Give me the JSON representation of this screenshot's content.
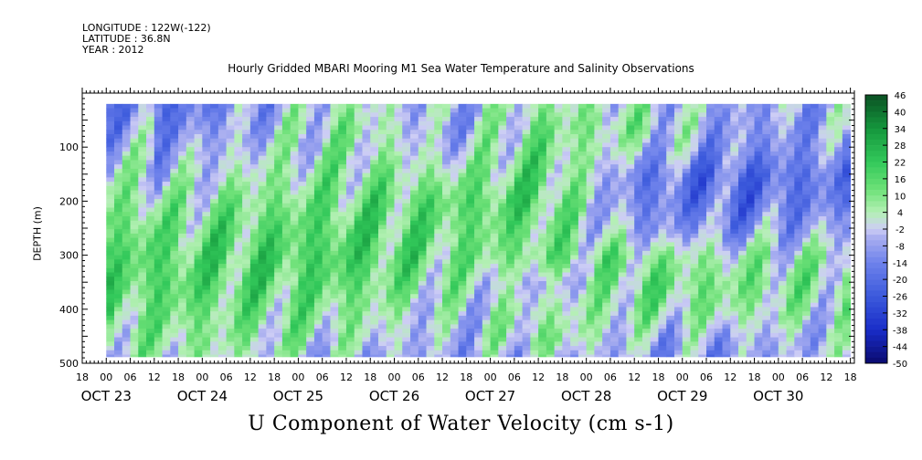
{
  "header": {
    "longitude": "LONGITUDE : 122W(-122)",
    "latitude": "LATITUDE : 36.8N",
    "year": "YEAR : 2012"
  },
  "chart_data": {
    "type": "heatmap",
    "title": "Hourly Gridded MBARI Mooring M1 Sea Water Temperature and Salinity Observations",
    "xlabel": "U Component of Water Velocity (cm s-1)",
    "ylabel": "DEPTH (m)",
    "y_axis": {
      "range": [
        500,
        0
      ],
      "ticks": [
        100,
        200,
        300,
        400,
        500
      ],
      "unit": "m"
    },
    "x_axis": {
      "range": [
        "2012-10-22T18:00",
        "2012-10-30T19:00"
      ],
      "hour_ticks": [
        "18",
        "00",
        "06",
        "12",
        "18",
        "00",
        "06",
        "12",
        "18",
        "00",
        "06",
        "12",
        "18",
        "00",
        "06",
        "12",
        "18",
        "00",
        "06",
        "12",
        "18",
        "00",
        "06",
        "12",
        "18",
        "00",
        "06",
        "12",
        "18",
        "00",
        "06",
        "12",
        "18"
      ],
      "date_labels": [
        "OCT 23",
        "OCT 24",
        "OCT 25",
        "OCT 26",
        "OCT 27",
        "OCT 28",
        "OCT 29",
        "OCT 30"
      ]
    },
    "colorbar": {
      "labels": [
        "46",
        "40",
        "34",
        "28",
        "22",
        "16",
        "10",
        "4",
        "-2",
        "-8",
        "-14",
        "-20",
        "-26",
        "-32",
        "-38",
        "-44",
        "-50"
      ],
      "range": [
        -50,
        46
      ]
    },
    "data_extent": {
      "start": "2012-10-23T00:00",
      "end": "2012-10-30T18:00",
      "depth_range": [
        20,
        488
      ]
    },
    "pattern": {
      "description_rows_depth_m": [
        20,
        60,
        100,
        150,
        200,
        250,
        300,
        350,
        400,
        450,
        488
      ],
      "days": [
        "OCT 23",
        "OCT 24",
        "OCT 25",
        "OCT 26",
        "OCT 27",
        "OCT 28",
        "OCT 29",
        "OCT 30"
      ],
      "mean_u_by_day_and_depth": [
        [
          -20,
          -14,
          -8,
          -4,
          4,
          10,
          14,
          16,
          12,
          8,
          4
        ],
        [
          -8,
          -6,
          -2,
          4,
          10,
          14,
          16,
          14,
          10,
          6,
          2
        ],
        [
          4,
          8,
          6,
          8,
          12,
          16,
          18,
          14,
          8,
          2,
          -4
        ],
        [
          -6,
          -8,
          -4,
          6,
          14,
          12,
          10,
          6,
          -2,
          -6,
          -8
        ],
        [
          6,
          10,
          12,
          14,
          16,
          12,
          10,
          -6,
          4,
          8,
          -2
        ],
        [
          2,
          6,
          -2,
          -14,
          -14,
          -8,
          8,
          12,
          6,
          -4,
          -8
        ],
        [
          -8,
          -10,
          -12,
          -20,
          -18,
          -10,
          4,
          10,
          6,
          -6,
          -10
        ],
        [
          -6,
          -8,
          -10,
          -16,
          -14,
          -6,
          4,
          6,
          2,
          -4,
          -2
        ]
      ]
    }
  }
}
